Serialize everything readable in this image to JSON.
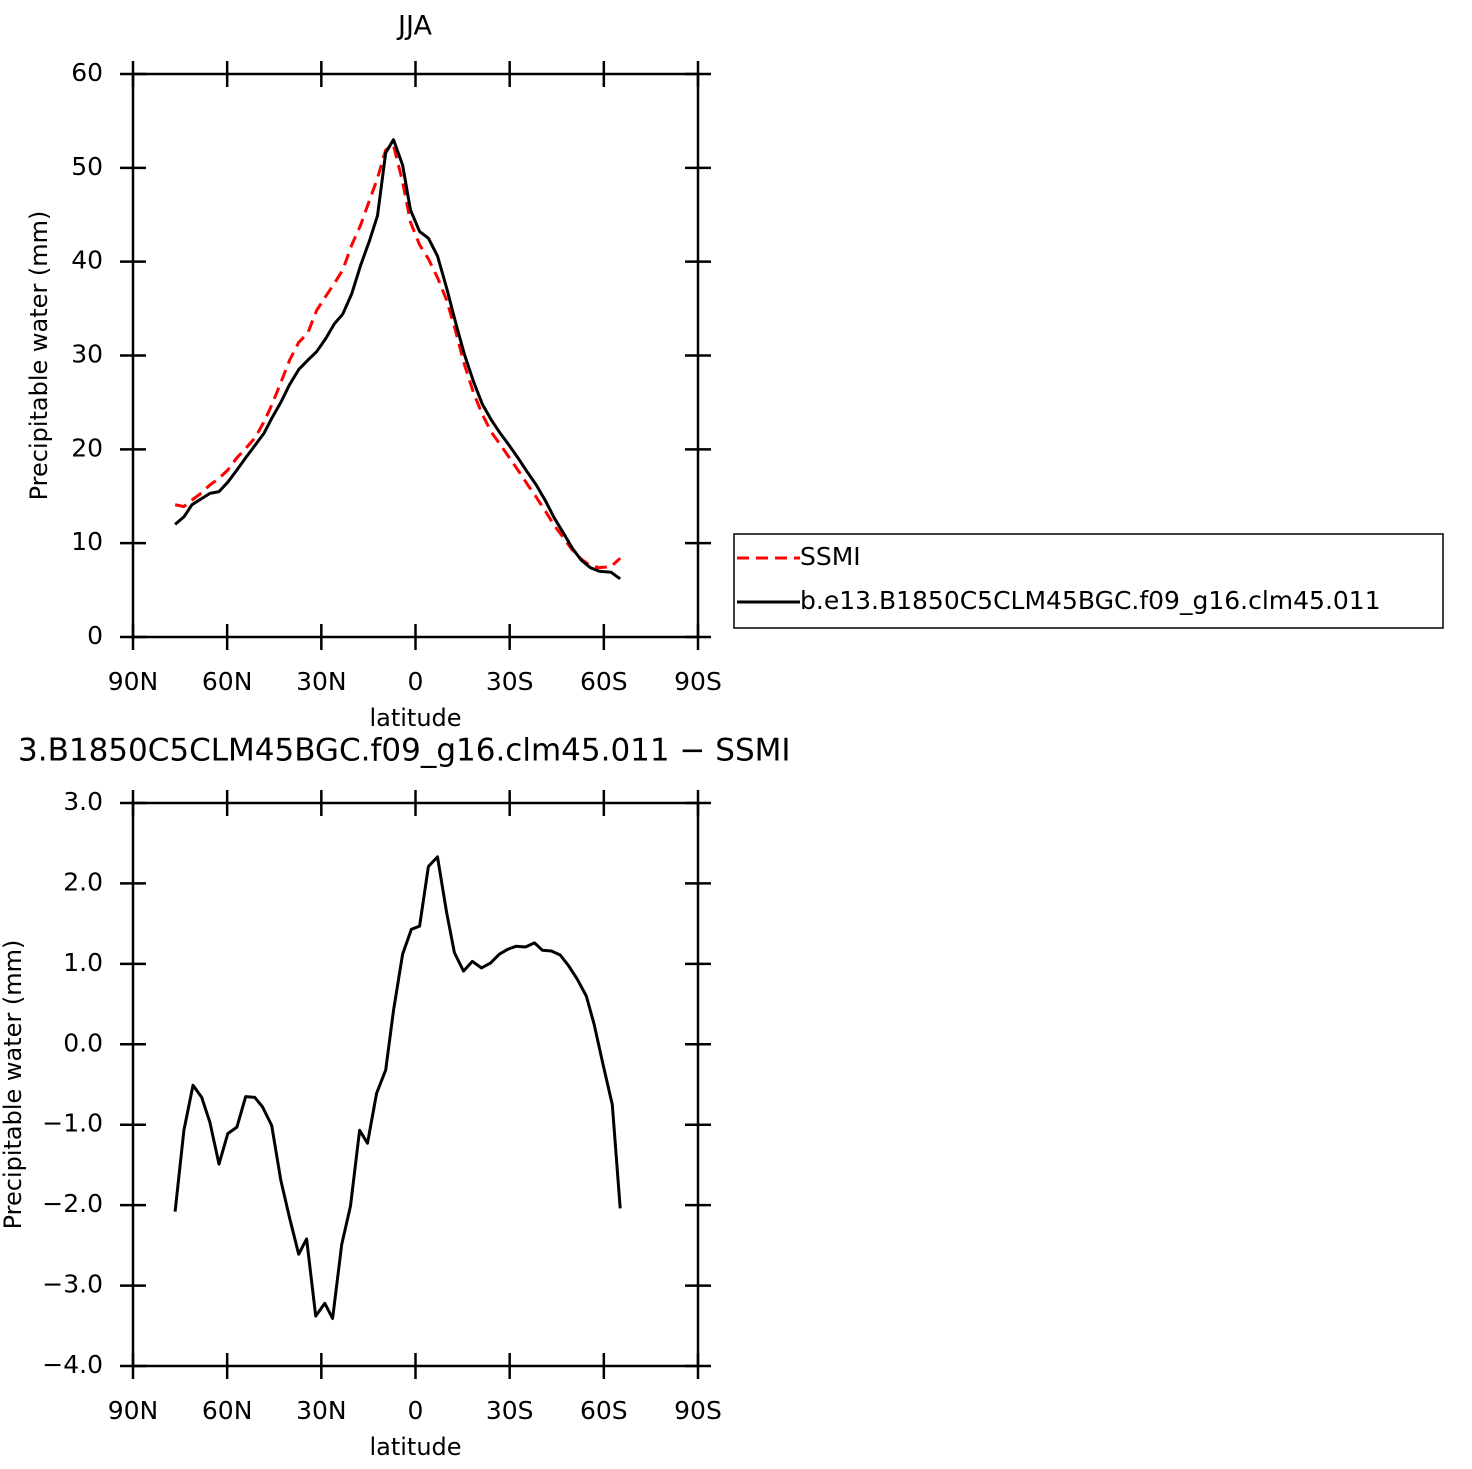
{
  "chart_data": [
    {
      "type": "line",
      "title": "JJA",
      "xlabel": "latitude",
      "ylabel": "Precipitable water (mm)",
      "x": [
        76.6,
        73.8,
        71.2,
        68.4,
        65.5,
        62.6,
        59.8,
        56.9,
        54.1,
        51.2,
        48.3,
        45.8,
        42.9,
        40.1,
        37.2,
        34.3,
        31.5,
        28.6,
        25.8,
        23.2,
        20.3,
        17.5,
        14.6,
        12.1,
        9.5,
        7.0,
        4.1,
        1.6,
        -1.3,
        -4.1,
        -7.0,
        -9.9,
        -12.7,
        -15.6,
        -18.5,
        -21.3,
        -24.2,
        -27.0,
        -29.9,
        -32.8,
        -35.6,
        -38.5,
        -41.4,
        -44.2,
        -47.1,
        -49.9,
        -52.8,
        -55.7,
        -58.5,
        -62.3,
        -65.2
      ],
      "series": [
        {
          "name": "SSMI",
          "color": "#ff0000",
          "style": "dashed",
          "values": [
            14.1,
            13.9,
            14.6,
            15.3,
            16.2,
            16.9,
            17.8,
            19.1,
            20.1,
            21.2,
            22.9,
            24.7,
            27.1,
            29.5,
            31.4,
            32.4,
            34.8,
            36.3,
            37.7,
            39.1,
            41.8,
            43.9,
            46.6,
            48.9,
            51.9,
            52.4,
            48.5,
            44.2,
            41.8,
            40.3,
            38.3,
            35.9,
            32.7,
            29.0,
            26.0,
            23.7,
            21.8,
            20.5,
            19.1,
            17.7,
            16.3,
            14.9,
            13.4,
            11.9,
            10.6,
            9.3,
            8.3,
            7.6,
            7.4,
            7.5,
            8.4
          ]
        },
        {
          "name": "b.e13.B1850C5CLM45BGC.f09_g16.clm45.011",
          "color": "#000000",
          "style": "solid",
          "values": [
            12.0,
            12.8,
            14.1,
            14.7,
            15.3,
            15.5,
            16.5,
            17.8,
            19.1,
            20.4,
            21.7,
            23.3,
            25.0,
            26.9,
            28.5,
            29.5,
            30.4,
            31.8,
            33.4,
            34.4,
            36.6,
            39.6,
            42.3,
            44.9,
            51.6,
            53.0,
            50.3,
            45.5,
            43.2,
            42.5,
            40.6,
            37.2,
            33.6,
            30.1,
            27.2,
            24.8,
            23.1,
            21.7,
            20.4,
            19.0,
            17.6,
            16.2,
            14.5,
            12.7,
            11.1,
            9.5,
            8.2,
            7.4,
            7.0,
            6.9,
            6.2
          ]
        }
      ],
      "xlim": [
        90,
        -90
      ],
      "xticks": [
        {
          "value": 90,
          "label": "90N"
        },
        {
          "value": 60,
          "label": "60N"
        },
        {
          "value": 30,
          "label": "30N"
        },
        0,
        {
          "value": -30,
          "label": "30S"
        },
        {
          "value": -60,
          "label": "60S"
        },
        {
          "value": -90,
          "label": "90S"
        }
      ],
      "ylim": [
        0,
        60
      ],
      "yticks": [
        0,
        10,
        20,
        30,
        40,
        50,
        60
      ],
      "legend": "right"
    },
    {
      "type": "line",
      "title": "3.B1850C5CLM45BGC.f09_g16.clm45.011 − SSMI",
      "xlabel": "latitude",
      "ylabel": "Precipitable water (mm)",
      "x": [
        76.6,
        73.8,
        70.9,
        68.1,
        65.5,
        62.6,
        59.8,
        56.9,
        54.1,
        51.2,
        48.7,
        45.8,
        42.9,
        40.1,
        37.2,
        34.7,
        31.8,
        28.9,
        26.4,
        23.5,
        20.7,
        17.8,
        15.3,
        12.4,
        9.5,
        7.0,
        4.1,
        1.3,
        -1.3,
        -4.1,
        -7.0,
        -9.9,
        -12.4,
        -15.3,
        -18.1,
        -21.0,
        -23.9,
        -26.7,
        -29.3,
        -32.1,
        -35.0,
        -37.9,
        -40.4,
        -43.3,
        -46.1,
        -48.7,
        -51.5,
        -54.4,
        -56.9,
        -59.8,
        -62.7,
        -65.2
      ],
      "values": [
        -2.08,
        -1.07,
        -0.51,
        -0.66,
        -0.97,
        -1.49,
        -1.11,
        -1.03,
        -0.65,
        -0.66,
        -0.78,
        -1.01,
        -1.69,
        -2.16,
        -2.61,
        -2.42,
        -3.38,
        -3.22,
        -3.41,
        -2.49,
        -2.01,
        -1.07,
        -1.23,
        -0.61,
        -0.32,
        0.42,
        1.12,
        1.43,
        1.47,
        2.21,
        2.33,
        1.64,
        1.14,
        0.91,
        1.03,
        0.95,
        1.01,
        1.12,
        1.18,
        1.22,
        1.21,
        1.26,
        1.17,
        1.16,
        1.11,
        0.98,
        0.81,
        0.6,
        0.25,
        -0.26,
        -0.75,
        -2.04
      ],
      "color": "#000000",
      "xlim": [
        90,
        -90
      ],
      "xticks": [
        {
          "value": 90,
          "label": "90N"
        },
        {
          "value": 60,
          "label": "60N"
        },
        {
          "value": 30,
          "label": "30N"
        },
        0,
        {
          "value": -30,
          "label": "30S"
        },
        {
          "value": -60,
          "label": "60S"
        },
        {
          "value": -90,
          "label": "90S"
        }
      ],
      "ylim": [
        -4,
        3
      ],
      "yticks": [
        {
          "value": -4,
          "label": "−4.0"
        },
        {
          "value": -3,
          "label": "−3.0"
        },
        {
          "value": -2,
          "label": "−2.0"
        },
        {
          "value": -1,
          "label": "−1.0"
        },
        {
          "value": 0,
          "label": "0.0"
        },
        {
          "value": 1,
          "label": "1.0"
        },
        {
          "value": 2,
          "label": "2.0"
        },
        {
          "value": 3,
          "label": "3.0"
        }
      ]
    }
  ]
}
